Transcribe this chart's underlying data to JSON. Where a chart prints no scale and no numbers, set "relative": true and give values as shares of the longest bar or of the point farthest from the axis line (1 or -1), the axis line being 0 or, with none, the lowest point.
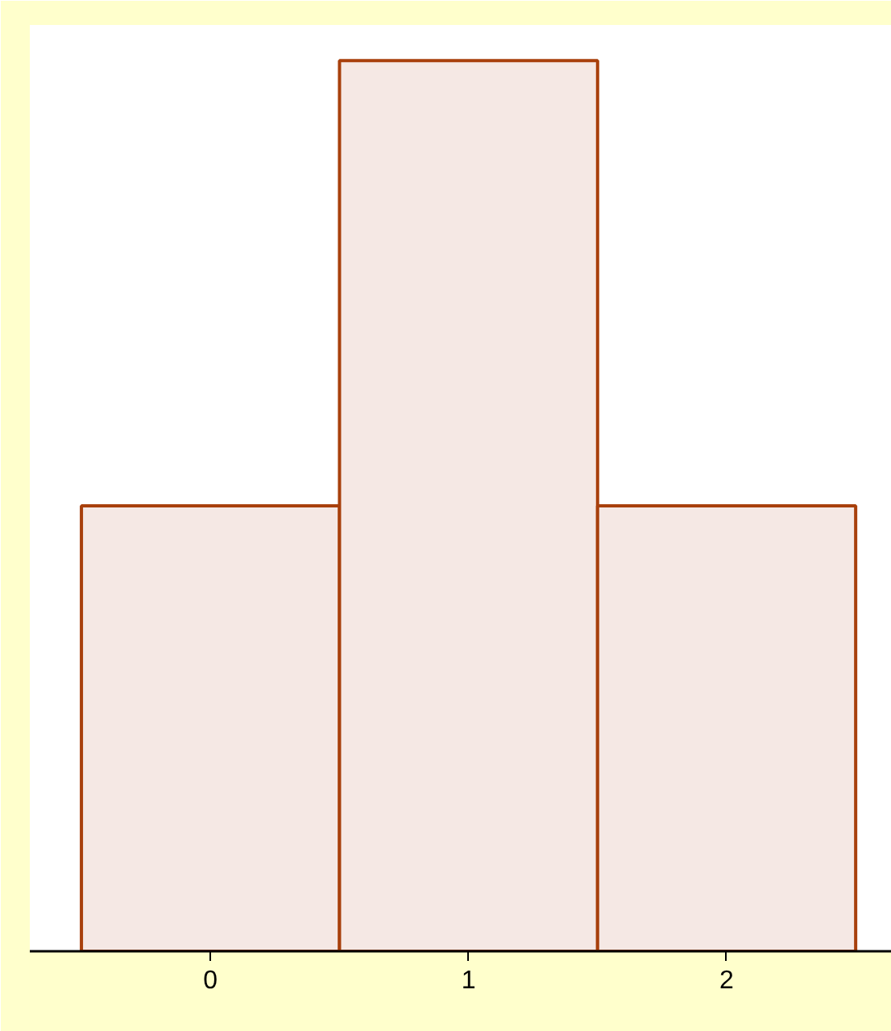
{
  "chart_data": {
    "type": "bar",
    "categories": [
      "0",
      "1",
      "2"
    ],
    "values": [
      0.5,
      1,
      0.5
    ],
    "relative": true,
    "color": "#f5e8e4"
  }
}
